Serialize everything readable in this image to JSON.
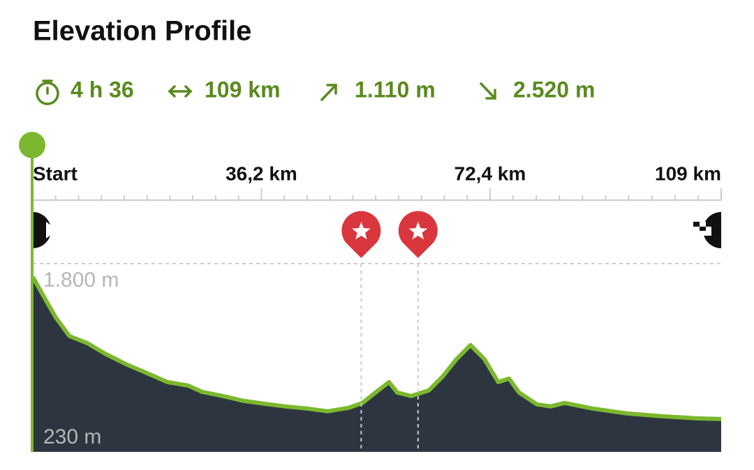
{
  "header": {
    "title": "Elevation Profile",
    "stats": [
      "4 h 36",
      "109 km",
      "1.110 m",
      "2.520 m"
    ]
  },
  "chart_data": {
    "type": "area",
    "xlim": [
      0,
      109
    ],
    "ylim": [
      -85,
      1800
    ],
    "xticks": [
      {
        "value": 0,
        "label": "Start"
      },
      {
        "value": 36.2,
        "label": "36,2 km"
      },
      {
        "value": 72.4,
        "label": "72,4 km"
      },
      {
        "value": 109,
        "label": "109 km"
      }
    ],
    "yticks": [
      {
        "value": 230,
        "label": "230 m"
      },
      {
        "value": 1800,
        "label": "1.800 m"
      }
    ],
    "x": [
      0,
      1.4,
      3.6,
      5.8,
      8.6,
      11.4,
      14.7,
      18.0,
      21.3,
      24.6,
      26.8,
      30.1,
      33.4,
      36.7,
      40.0,
      43.4,
      46.7,
      50.0,
      52.2,
      54.4,
      56.4,
      57.7,
      59.9,
      62.7,
      64.9,
      67.1,
      69.3,
      71.5,
      73.7,
      75.4,
      77.0,
      79.8,
      82.0,
      84.2,
      88.6,
      94.1,
      99.6,
      105.1,
      109
    ],
    "series": [
      {
        "color": "#7cb82f",
        "fill": "#2d3640",
        "values": [
          1667,
          1507,
          1263,
          1074,
          1005,
          900,
          795,
          705,
          614,
          579,
          516,
          474,
          425,
          397,
          370,
          349,
          321,
          356,
          405,
          516,
          614,
          509,
          474,
          530,
          670,
          844,
          984,
          844,
          614,
          649,
          509,
          391,
          370,
          405,
          349,
          300,
          272,
          251,
          244
        ]
      }
    ],
    "markers": [
      52.0,
      61.0
    ],
    "marker_color": "#d9363e"
  }
}
